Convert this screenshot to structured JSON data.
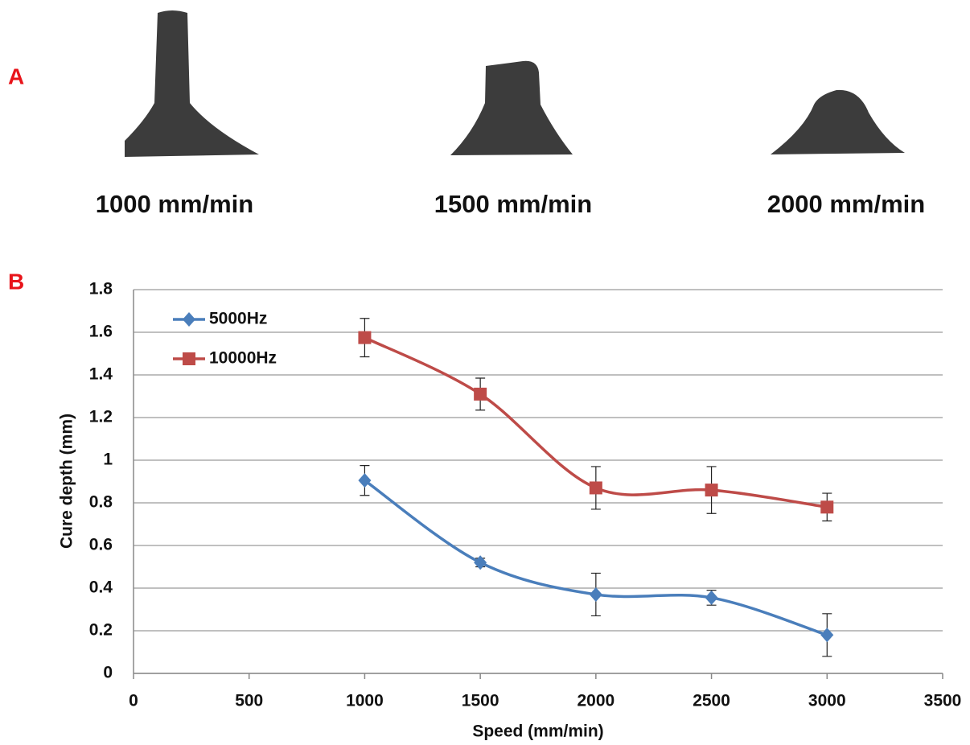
{
  "panels": {
    "a": {
      "label": "A",
      "captions": [
        "1000 mm/min",
        "1500 mm/min",
        "2000 mm/min"
      ]
    },
    "b": {
      "label": "B"
    }
  },
  "chart_data": {
    "type": "line",
    "smooth": true,
    "grid": true,
    "legend": "upper left",
    "xlabel": "Speed (mm/min)",
    "ylabel": "Cure depth (mm)",
    "x": [
      1000,
      1500,
      2000,
      2500,
      3000
    ],
    "xlim": [
      0,
      3500
    ],
    "xticks": [
      0,
      500,
      1000,
      1500,
      2000,
      2500,
      3000,
      3500
    ],
    "ylim": [
      0,
      1.8
    ],
    "yticks": [
      0,
      0.2,
      0.4,
      0.6,
      0.8,
      1,
      1.2,
      1.4,
      1.6,
      1.8
    ],
    "series": [
      {
        "name": "5000Hz",
        "color": "#4a7ebb",
        "marker": "diamond",
        "values": [
          0.905,
          0.52,
          0.37,
          0.355,
          0.18
        ],
        "errors": [
          0.07,
          0.02,
          0.1,
          0.035,
          0.1
        ]
      },
      {
        "name": "10000Hz",
        "color": "#be4b48",
        "marker": "square",
        "values": [
          1.575,
          1.31,
          0.87,
          0.86,
          0.78
        ],
        "errors": [
          0.09,
          0.075,
          0.1,
          0.11,
          0.065
        ]
      }
    ]
  }
}
